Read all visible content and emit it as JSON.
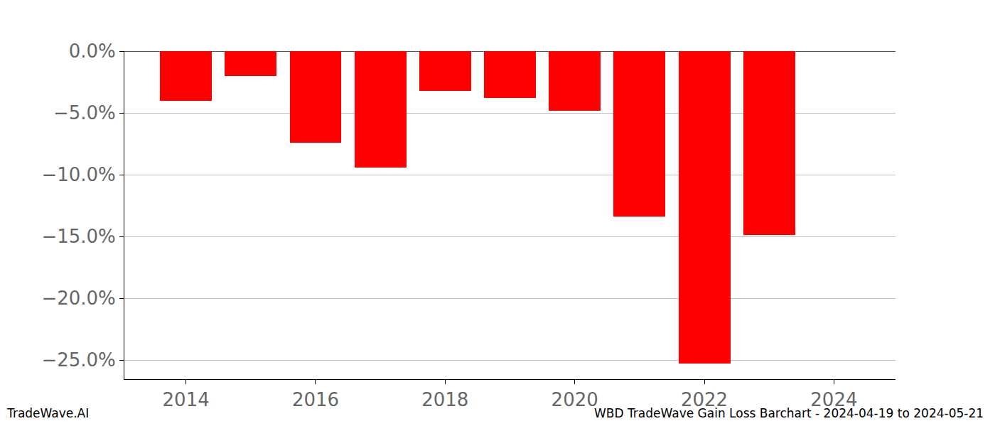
{
  "chart_data": {
    "type": "bar",
    "x": [
      2014,
      2015,
      2016,
      2017,
      2018,
      2019,
      2020,
      2021,
      2022,
      2023
    ],
    "values": [
      -4.0,
      -2.0,
      -7.4,
      -9.4,
      -3.2,
      -3.8,
      -4.8,
      -13.4,
      -25.3,
      -14.9
    ],
    "color": "#ff0000",
    "xlim": [
      2013.05,
      2024.95
    ],
    "xticks": [
      2014,
      2016,
      2018,
      2020,
      2022,
      2024
    ],
    "ylim": [
      -26.55,
      0
    ],
    "yticks": [
      {
        "value": 0,
        "label": "0.0%"
      },
      {
        "value": -5,
        "label": "−5.0%"
      },
      {
        "value": -10,
        "label": "−10.0%"
      },
      {
        "value": -15,
        "label": "−15.0%"
      },
      {
        "value": -20,
        "label": "−20.0%"
      },
      {
        "value": -25,
        "label": "−25.0%"
      }
    ],
    "grid": true,
    "annotations": [
      "TradeWave.AI",
      "WBD TradeWave Gain Loss Barchart - 2024-04-19 to 2024-05-21"
    ]
  }
}
